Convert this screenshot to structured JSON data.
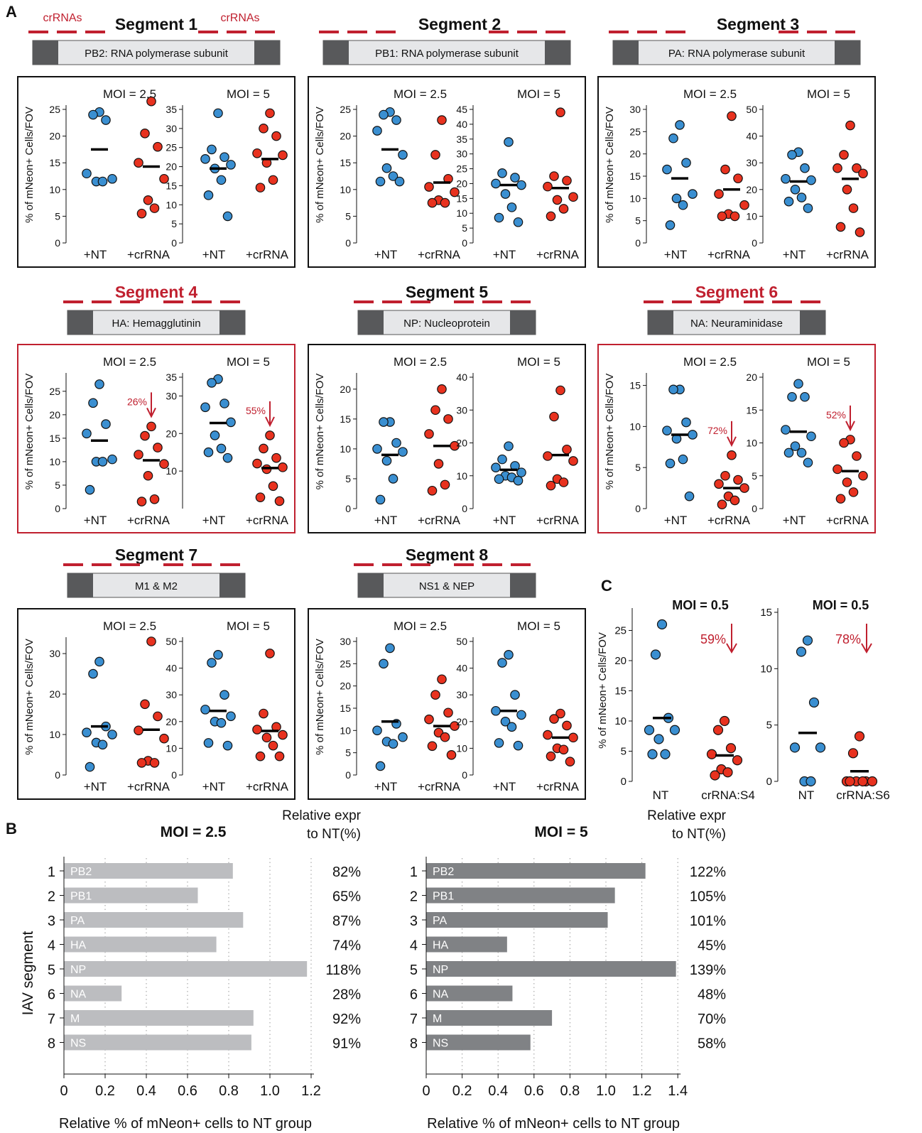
{
  "colors": {
    "nt": "#3a8fd1",
    "crrna": "#e8321f",
    "highlight": "#c0202f",
    "ink": "#111111",
    "gene_box": "#e6e7e9",
    "utr_box": "#58595b",
    "bar_low": "#bcbdc0",
    "bar_high": "#808285"
  },
  "panel_labels": {
    "a": "A",
    "b": "B",
    "c": "C"
  },
  "crrna_label": "crRNAs",
  "ylabel": "% of mNeon+ Cells/FOV",
  "segments": [
    {
      "title": "Segment 1",
      "gene": "PB2: RNA polymerase subunit",
      "highlighted": false,
      "subplots": [
        {
          "moi": "MOI = 2.5",
          "yticks": [
            "0",
            "5",
            "10",
            "15",
            "20",
            "25"
          ],
          "ymax": 25,
          "nt": [
            24.5,
            24,
            23,
            13,
            12,
            11.5,
            11.5
          ],
          "nt_mean": 17.5,
          "crrna": [
            26.5,
            20.5,
            18,
            15,
            12,
            8,
            6.5,
            5.5
          ],
          "crrna_mean": 14.3
        },
        {
          "moi": "MOI = 5",
          "yticks": [
            "0",
            "5",
            "10",
            "15",
            "20",
            "25",
            "30",
            "35"
          ],
          "ymax": 35,
          "nt": [
            34,
            24.5,
            22.5,
            22,
            20.5,
            19.5,
            16.5,
            12.5,
            7
          ],
          "nt_mean": 19.5,
          "crrna": [
            34,
            30,
            28,
            23.5,
            23,
            21,
            16.5,
            14.5
          ],
          "crrna_mean": 22
        }
      ]
    },
    {
      "title": "Segment 2",
      "gene": "PB1: RNA polymerase subunit",
      "highlighted": false,
      "subplots": [
        {
          "moi": "MOI = 2.5",
          "yticks": [
            "0",
            "5",
            "10",
            "15",
            "20",
            "25"
          ],
          "ymax": 25,
          "nt": [
            24.5,
            24,
            23,
            21,
            16.5,
            14,
            12.5,
            11.5,
            11.5
          ],
          "nt_mean": 17.5,
          "crrna": [
            23,
            16.5,
            12,
            10.5,
            9.5,
            8,
            7.5,
            7.5
          ],
          "crrna_mean": 11.3
        },
        {
          "moi": "MOI = 5",
          "yticks": [
            "0",
            "5",
            "10",
            "15",
            "20",
            "25",
            "30",
            "35",
            "40",
            "45"
          ],
          "ymax": 45,
          "nt": [
            34,
            23.5,
            22,
            20,
            19.5,
            16.5,
            12,
            8.5,
            7
          ],
          "nt_mean": 19.5,
          "crrna": [
            44,
            22.5,
            21,
            19,
            15.5,
            14.5,
            11.5,
            9
          ],
          "crrna_mean": 18.5
        }
      ]
    },
    {
      "title": "Segment 3",
      "gene": "PA: RNA polymerase subunit",
      "highlighted": false,
      "subplots": [
        {
          "moi": "MOI = 2.5",
          "yticks": [
            "0",
            "5",
            "10",
            "15",
            "20",
            "25",
            "30"
          ],
          "ymax": 30,
          "nt": [
            26.5,
            23.5,
            18,
            16.5,
            11,
            10,
            8.5,
            4
          ],
          "nt_mean": 14.5,
          "crrna": [
            28.5,
            16.5,
            14.5,
            11,
            8.5,
            6.5,
            6,
            6
          ],
          "crrna_mean": 12
        },
        {
          "moi": "MOI = 5",
          "yticks": [
            "0",
            "10",
            "20",
            "30",
            "40",
            "50"
          ],
          "ymax": 50,
          "nt": [
            34,
            33,
            28,
            24,
            23.5,
            20,
            17,
            15.5,
            13
          ],
          "nt_mean": 23,
          "crrna": [
            44,
            33,
            28,
            28,
            26,
            20,
            13,
            6,
            4
          ],
          "crrna_mean": 24
        }
      ]
    },
    {
      "title": "Segment 4",
      "gene": "HA: Hemagglutinin",
      "highlighted": true,
      "subplots": [
        {
          "moi": "MOI = 2.5",
          "yticks": [
            "0",
            "5",
            "10",
            "15",
            "20",
            "25"
          ],
          "ymax": 28,
          "nt": [
            26.5,
            22.5,
            18,
            16,
            10.5,
            10,
            10,
            4
          ],
          "nt_mean": 14.5,
          "crrna": [
            17.5,
            15.5,
            13,
            11.5,
            9.5,
            7,
            2,
            1.5
          ],
          "crrna_mean": 10.3,
          "reduction": "26%"
        },
        {
          "moi": "MOI = 5",
          "yticks": [
            "10",
            "20",
            "30",
            "35"
          ],
          "ymax": 35,
          "nt": [
            34.5,
            33.5,
            28,
            27,
            23,
            19.5,
            16,
            15,
            13.5
          ],
          "nt_mean": 22.8,
          "crrna": [
            19.5,
            16,
            13.5,
            12,
            11,
            10.5,
            6,
            3,
            2
          ],
          "crrna_mean": 10.8,
          "reduction": "55%"
        }
      ]
    },
    {
      "title": "Segment 5",
      "gene": "NP: Nucleoprotein",
      "highlighted": false,
      "subplots": [
        {
          "moi": "MOI = 2.5",
          "yticks": [
            "0",
            "5",
            "10",
            "15",
            "20"
          ],
          "ymax": 22,
          "nt": [
            14.5,
            14.5,
            11,
            10,
            9.5,
            8,
            5,
            1.5
          ],
          "nt_mean": 9,
          "crrna": [
            20,
            16.5,
            15,
            12.5,
            10.5,
            7.5,
            4,
            3
          ],
          "crrna_mean": 10.5
        },
        {
          "moi": "MOI = 5",
          "yticks": [
            "0",
            "10",
            "20",
            "30",
            "40"
          ],
          "ymax": 40,
          "nt": [
            19,
            15,
            13,
            12.5,
            11,
            10,
            9.5,
            9,
            8.5
          ],
          "nt_mean": 11.8,
          "crrna": [
            36,
            28,
            18,
            16,
            14.5,
            9,
            8,
            7
          ],
          "crrna_mean": 16.3
        }
      ]
    },
    {
      "title": "Segment 6",
      "gene": "NA: Neuraminidase",
      "highlighted": true,
      "subplots": [
        {
          "moi": "MOI = 2.5",
          "yticks": [
            "0",
            "5",
            "10",
            "15"
          ],
          "ymax": 16,
          "nt": [
            14.5,
            14.5,
            10.5,
            9.5,
            9,
            8.5,
            6,
            5.5,
            1.5
          ],
          "nt_mean": 9,
          "crrna": [
            6.5,
            4,
            3.5,
            3,
            2.5,
            1.5,
            1,
            0.5
          ],
          "crrna_mean": 2.5,
          "reduction": "72%"
        },
        {
          "moi": "MOI = 5",
          "yticks": [
            "0",
            "5",
            "10",
            "15",
            "20"
          ],
          "ymax": 20,
          "nt": [
            19,
            17,
            17,
            12,
            11,
            9.5,
            8.5,
            8.5,
            7
          ],
          "nt_mean": 11.7,
          "crrna": [
            10.5,
            10,
            8,
            6,
            5,
            4,
            2.5,
            1.5
          ],
          "crrna_mean": 5.7,
          "reduction": "52%"
        }
      ]
    },
    {
      "title": "Segment 7",
      "gene": "M1 & M2",
      "highlighted": false,
      "subplots": [
        {
          "moi": "MOI = 2.5",
          "yticks": [
            "0",
            "10",
            "20",
            "30"
          ],
          "ymax": 33,
          "nt": [
            28,
            25,
            12,
            10.5,
            10,
            8,
            7.5,
            2
          ],
          "nt_mean": 12,
          "crrna": [
            33,
            17.5,
            14.5,
            11,
            9,
            3.5,
            3,
            3
          ],
          "crrna_mean": 11.2
        },
        {
          "moi": "MOI = 5",
          "yticks": [
            "0",
            "10",
            "20",
            "30",
            "40",
            "50"
          ],
          "ymax": 50,
          "nt": [
            45,
            42,
            30,
            24.5,
            22,
            20,
            19.5,
            12,
            11
          ],
          "nt_mean": 24,
          "crrna": [
            45.5,
            23,
            18,
            17,
            15,
            14,
            11,
            7,
            7
          ],
          "crrna_mean": 16.5
        }
      ]
    },
    {
      "title": "Segment 8",
      "gene": "NS1 & NEP",
      "highlighted": false,
      "subplots": [
        {
          "moi": "MOI = 2.5",
          "yticks": [
            "0",
            "5",
            "10",
            "15",
            "20",
            "25",
            "30"
          ],
          "ymax": 30,
          "nt": [
            28.5,
            25,
            11.5,
            10,
            8.5,
            7.5,
            7,
            2
          ],
          "nt_mean": 12,
          "crrna": [
            21.5,
            18,
            14,
            12.5,
            11,
            9.5,
            8.5,
            6.5,
            4.5
          ],
          "crrna_mean": 11
        },
        {
          "moi": "MOI = 5",
          "yticks": [
            "0",
            "10",
            "20",
            "30",
            "40",
            "50"
          ],
          "ymax": 50,
          "nt": [
            45,
            42,
            30,
            24,
            22.5,
            20,
            18,
            12,
            11
          ],
          "nt_mean": 24,
          "crrna": [
            23,
            21,
            18.5,
            15,
            14,
            10,
            9.5,
            7,
            5
          ],
          "crrna_mean": 14
        }
      ]
    }
  ],
  "chart_data": [
    {
      "type": "scatter",
      "panel": "A",
      "note": "Segment dot plots: see segments[] for per-group values",
      "ylabel": "% of mNeon+ Cells/FOV",
      "xticks": [
        "+NT",
        "+crRNA"
      ]
    },
    {
      "type": "bar",
      "panel": "B",
      "title": "MOI = 2.5",
      "orientation": "horizontal",
      "categories": [
        "1",
        "2",
        "3",
        "4",
        "5",
        "6",
        "7",
        "8"
      ],
      "bar_labels": [
        "PB2",
        "PB1",
        "PA",
        "HA",
        "NP",
        "NA",
        "M",
        "NS"
      ],
      "values": [
        0.82,
        0.65,
        0.87,
        0.74,
        1.18,
        0.28,
        0.92,
        0.91
      ],
      "right_labels": [
        "82%",
        "65%",
        "87%",
        "74%",
        "118%",
        "28%",
        "92%",
        "91%"
      ],
      "right_header": [
        "Relative expr",
        "to NT(%)"
      ],
      "xlabel": "Relative % of mNeon+ cells to NT group",
      "ylabel": "IAV segment",
      "xlim": [
        0,
        1.2
      ],
      "xticks": [
        "0",
        "0.2",
        "0.4",
        "0.6",
        "0.8",
        "1.0",
        "1.2"
      ]
    },
    {
      "type": "bar",
      "panel": "B",
      "title": "MOI = 5",
      "orientation": "horizontal",
      "categories": [
        "1",
        "2",
        "3",
        "4",
        "5",
        "6",
        "7",
        "8"
      ],
      "bar_labels": [
        "PB2",
        "PB1",
        "PA",
        "HA",
        "NP",
        "NA",
        "M",
        "NS"
      ],
      "values": [
        1.22,
        1.05,
        1.01,
        0.45,
        1.39,
        0.48,
        0.7,
        0.58
      ],
      "right_labels": [
        "122%",
        "105%",
        "101%",
        "45%",
        "139%",
        "48%",
        "70%",
        "58%"
      ],
      "right_header": [
        "Relative expr",
        "to NT(%)"
      ],
      "xlabel": "Relative % of mNeon+ cells to NT group",
      "xlim": [
        0,
        1.4
      ],
      "xticks": [
        "0",
        "0.2",
        "0.4",
        "0.6",
        "0.8",
        "1.0",
        "1.2",
        "1.4"
      ]
    },
    {
      "type": "scatter",
      "panel": "C",
      "title": "MOI = 0.5",
      "ylabel": "% of mNeon+ Cells/FOV",
      "xticks": [
        "NT",
        "crRNA:S4"
      ],
      "yticks": [
        "0",
        "5",
        "10",
        "15",
        "20",
        "25"
      ],
      "ymax": 28,
      "nt": [
        26,
        21,
        10.5,
        8.5,
        8.5,
        7,
        4.5,
        4.5
      ],
      "nt_mean": 10.5,
      "crrna": [
        10,
        8.5,
        5.5,
        4.5,
        3.5,
        2,
        1.5,
        1
      ],
      "crrna_mean": 4.3,
      "reduction": "59%"
    },
    {
      "type": "scatter",
      "panel": "C",
      "title": "MOI = 0.5",
      "xticks": [
        "NT",
        "crRNA:S6"
      ],
      "yticks": [
        "0",
        "5",
        "10",
        "15"
      ],
      "ymax": 15,
      "nt": [
        12.5,
        11.5,
        7,
        3,
        3,
        0,
        0
      ],
      "nt_mean": 4.3,
      "crrna": [
        4,
        2.5,
        0,
        0,
        0,
        0,
        0,
        0
      ],
      "crrna_mean": 0.9,
      "reduction": "78%"
    }
  ]
}
